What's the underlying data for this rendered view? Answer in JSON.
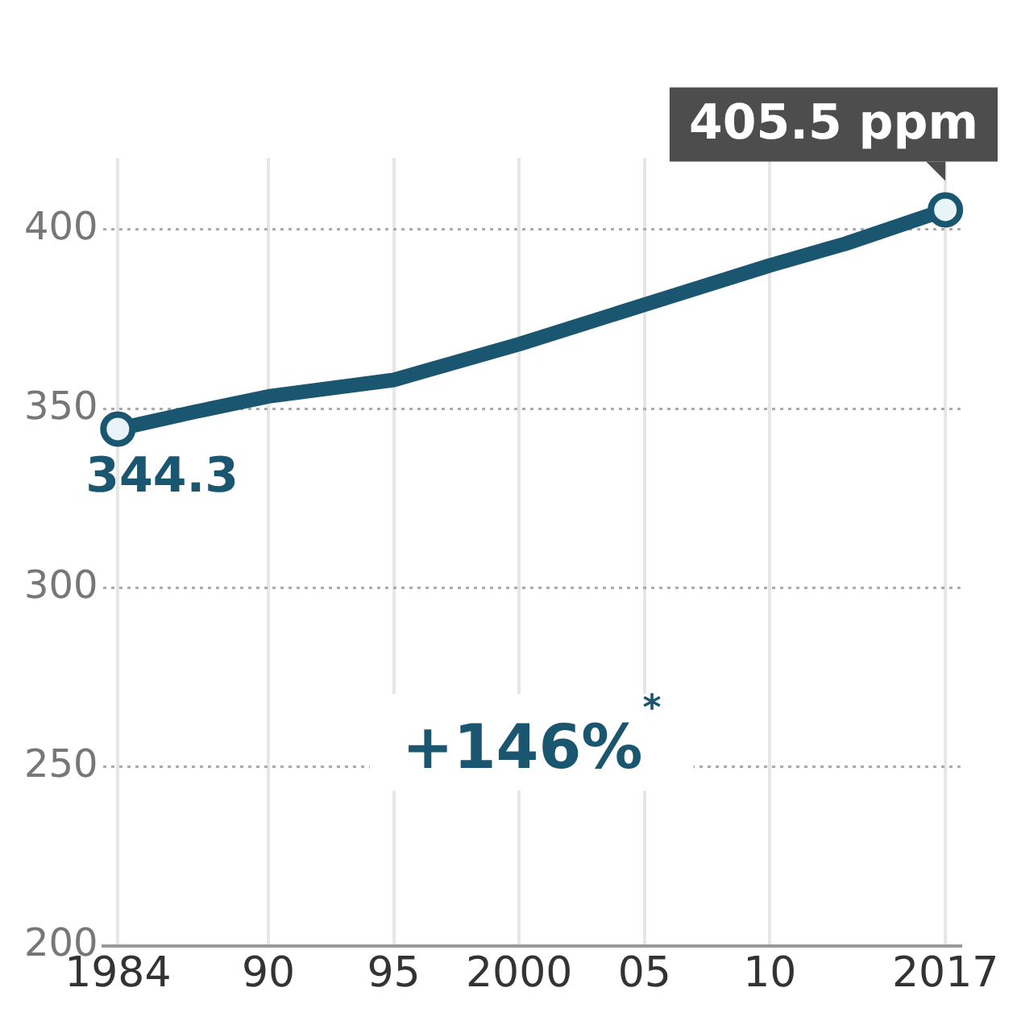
{
  "chart_data": {
    "type": "line",
    "x": [
      1984,
      1987,
      1990,
      1995,
      2000,
      2005,
      2010,
      2013,
      2017
    ],
    "series": [
      {
        "color": "#1b5670",
        "values": [
          344.3,
          349,
          353.4,
          358,
          368,
          379,
          390,
          396,
          405.5
        ],
        "value_labels": [
          "344.3",
          null,
          null,
          null,
          null,
          null,
          null,
          null,
          "405.5 ppm"
        ]
      }
    ],
    "xlim": [
      1983.4,
      2017.6
    ],
    "xticks": [
      1984,
      {
        "value": 1990,
        "label": "90"
      },
      {
        "value": 1995,
        "label": "95"
      },
      2000,
      {
        "value": 2005,
        "label": "05"
      },
      {
        "value": 2010,
        "label": "10"
      },
      2017
    ],
    "ylim": [
      200,
      420
    ],
    "yticks": [
      200,
      250,
      300,
      350,
      400
    ],
    "grid": true,
    "legend": false,
    "line_style": "solid",
    "annotations": [
      "+146%$^{*}$"
    ]
  }
}
